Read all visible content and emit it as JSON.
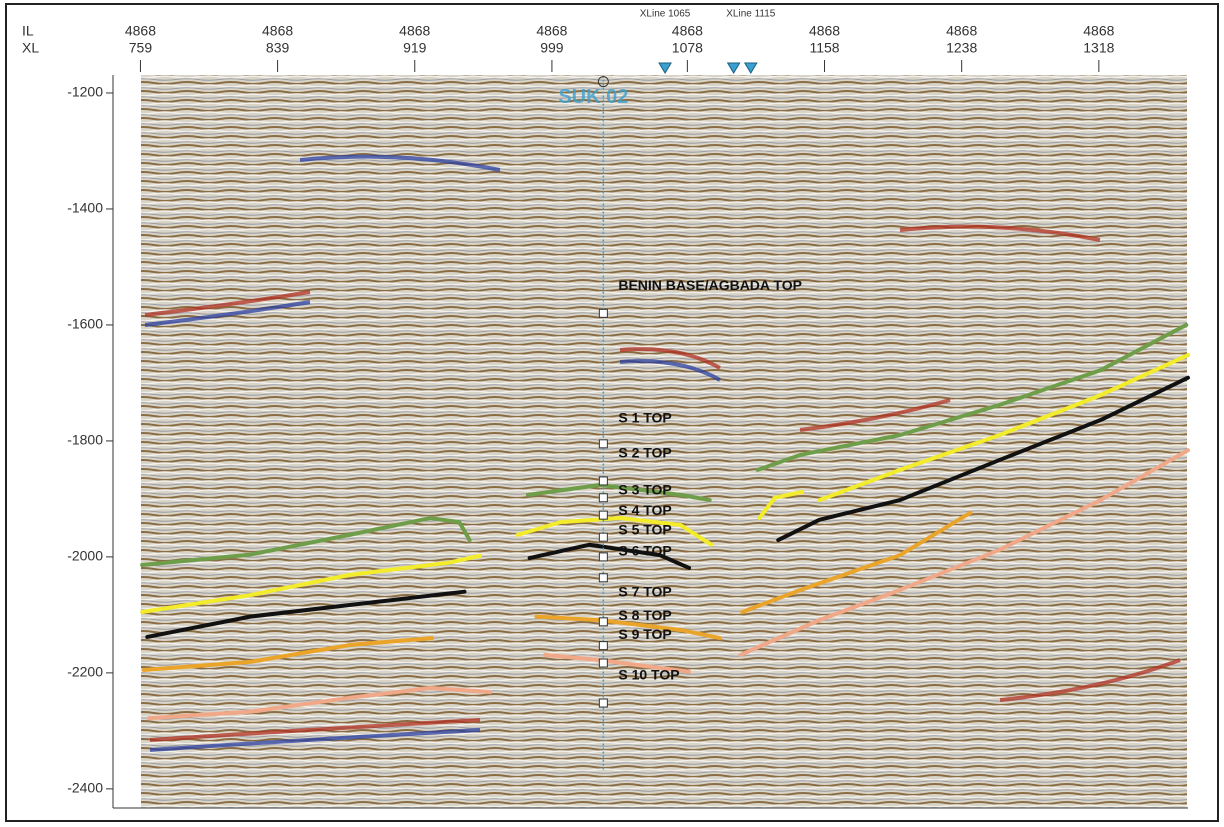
{
  "chart_data": {
    "type": "line",
    "il_label": "IL",
    "xl_label": "XL",
    "xlim": [
      743,
      1370
    ],
    "ylim": [
      -1169,
      -2433
    ],
    "xticks": [
      759,
      839,
      919,
      999,
      1078,
      1158,
      1238,
      1318
    ],
    "il": [
      4868,
      4868,
      4868,
      4868,
      4868,
      4868,
      4868,
      4868
    ],
    "yticks": [
      -1200,
      -1400,
      -1600,
      -1800,
      -2000,
      -2200,
      -2400
    ],
    "xline_markers": [
      {
        "label": "XLine 1065",
        "value": 1065
      },
      {
        "label": "XLine 1115",
        "value": 1115
      }
    ],
    "extra_marker": 1105,
    "well": {
      "name": "SUK 02",
      "xl": 1029,
      "top": -1170,
      "bottom": -2370,
      "color": "#3aa0d0"
    },
    "well_markers": [
      -1580,
      -1805,
      -1869,
      -1898,
      -1928,
      -1966,
      -2000,
      -2036,
      -2112,
      -2153,
      -2183,
      -2252
    ],
    "tops": [
      {
        "label": "BENIN BASE/AGBADA TOP",
        "depth": -1533
      },
      {
        "label": "S 1 TOP",
        "depth": -1762
      },
      {
        "label": "S 2 TOP",
        "depth": -1822
      },
      {
        "label": "S 3 TOP",
        "depth": -1886
      },
      {
        "label": "S 4 TOP",
        "depth": -1921
      },
      {
        "label": "S 5 TOP",
        "depth": -1955
      },
      {
        "label": "S 6 TOP",
        "depth": -1991
      },
      {
        "label": "S 7 TOP",
        "depth": -2062
      },
      {
        "label": "S 8 TOP",
        "depth": -2102
      },
      {
        "label": "S 9 TOP",
        "depth": -2135
      },
      {
        "label": "S 10 TOP",
        "depth": -2205
      }
    ],
    "series": [
      {
        "color": "#6f9e4a",
        "x": [
          760,
          823,
          881,
          928,
          945,
          951,
          null,
          985,
          1027,
          1074,
          1091,
          null,
          1119,
          1144,
          1202,
          1260,
          1319,
          1369
        ],
        "values": [
          -2014,
          -1996,
          -1962,
          -1933,
          -1940,
          -1971,
          null,
          -1893,
          -1876,
          -1893,
          -1902,
          null,
          -1850,
          -1824,
          -1790,
          -1738,
          -1678,
          -1600
        ]
      },
      {
        "color": "#f2ec2a",
        "x": [
          760,
          823,
          881,
          939,
          957,
          null,
          979,
          1004,
          1039,
          1074,
          1092,
          null,
          1120,
          1129,
          1145,
          null,
          1155,
          1202,
          1260,
          1319,
          1370
        ],
        "values": [
          -2095,
          -2066,
          -2031,
          -2010,
          -1998,
          null,
          -1962,
          -1940,
          -1933,
          -1945,
          -1979,
          null,
          -1933,
          -1898,
          -1888,
          null,
          -1902,
          -1850,
          -1790,
          -1721,
          -1652
        ]
      },
      {
        "color": "#111111",
        "x": [
          763,
          823,
          881,
          948,
          null,
          986,
          1021,
          1062,
          1079,
          null,
          1131,
          1155,
          1202,
          1260,
          1319,
          1370
        ],
        "values": [
          -2138,
          -2103,
          -2083,
          -2060,
          null,
          -2002,
          -1979,
          -1997,
          -2019,
          null,
          -1971,
          -1936,
          -1902,
          -1833,
          -1764,
          -1691
        ]
      },
      {
        "color": "#eaa42a",
        "x": [
          761,
          823,
          881,
          929,
          null,
          990,
          1027,
          1074,
          1097,
          null,
          1110,
          1144,
          1202,
          1243
        ],
        "values": [
          -2195,
          -2181,
          -2152,
          -2140,
          null,
          -2103,
          -2109,
          -2126,
          -2140,
          null,
          -2095,
          -2057,
          -1997,
          -1924
        ]
      },
      {
        "color": "#f0a888",
        "x": [
          764,
          823,
          881,
          928,
          963,
          null,
          995,
          1027,
          1079,
          null,
          1109,
          1155,
          1202,
          1260,
          1319,
          1370
        ],
        "values": [
          -2278,
          -2267,
          -2243,
          -2226,
          -2233,
          null,
          -2169,
          -2178,
          -2198,
          null,
          -2169,
          -2109,
          -2057,
          -1988,
          -1902,
          -1816
        ]
      }
    ]
  }
}
